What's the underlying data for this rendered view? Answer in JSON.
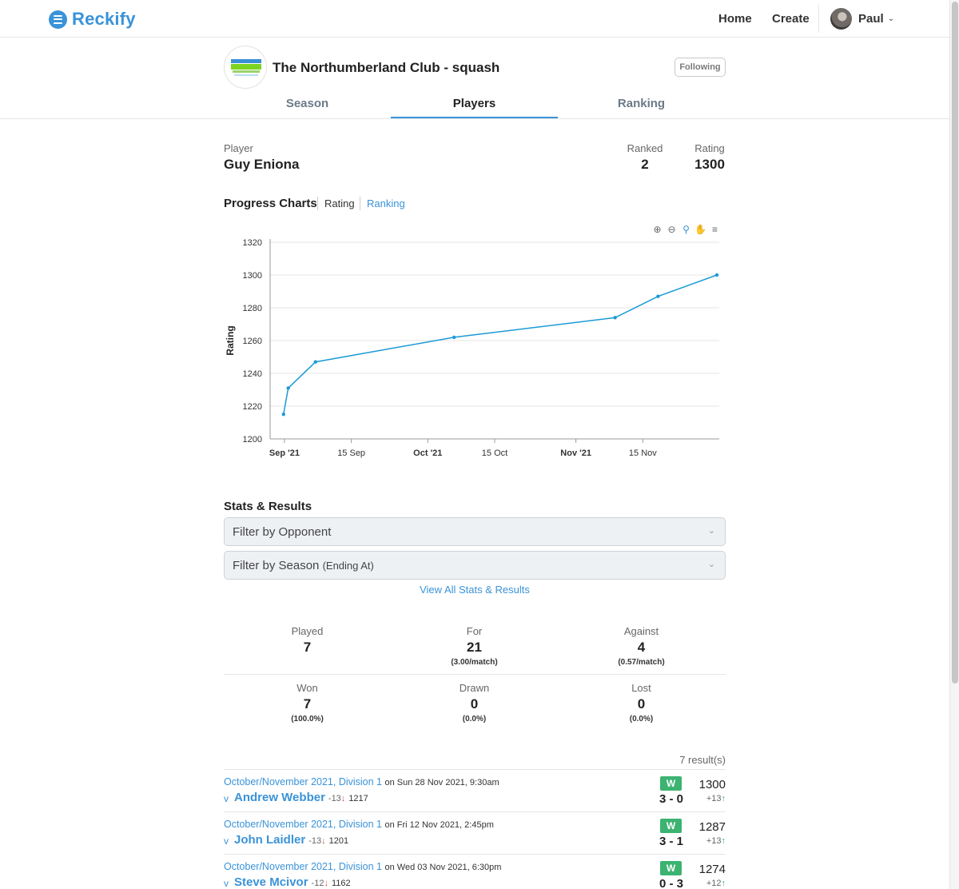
{
  "nav": {
    "brand": "Reckify",
    "home": "Home",
    "create": "Create",
    "user": "Paul"
  },
  "club": {
    "name": "The Northumberland Club - squash",
    "follow_label": "Following"
  },
  "tabs": [
    "Season",
    "Players",
    "Ranking"
  ],
  "player": {
    "label": "Player",
    "name": "Guy Eniona",
    "ranked_label": "Ranked",
    "ranked": "2",
    "rating_label": "Rating",
    "rating": "1300"
  },
  "progress": {
    "title": "Progress Charts",
    "rating_link": "Rating",
    "ranking_link": "Ranking"
  },
  "chart_data": {
    "type": "line",
    "title": "",
    "xlabel": "",
    "ylabel": "Rating",
    "ylim": [
      1200,
      1320
    ],
    "yticks": [
      1200,
      1220,
      1240,
      1260,
      1280,
      1300,
      1320
    ],
    "xlim_days": [
      -3,
      91
    ],
    "x_day0": "2021-09-01",
    "xticks": [
      {
        "day": 0,
        "label": "Sep '21",
        "bold": true
      },
      {
        "day": 14,
        "label": "15 Sep",
        "bold": false
      },
      {
        "day": 30,
        "label": "Oct '21",
        "bold": true
      },
      {
        "day": 44,
        "label": "15 Oct",
        "bold": false
      },
      {
        "day": 61,
        "label": "Nov '21",
        "bold": true
      },
      {
        "day": 75,
        "label": "15 Nov",
        "bold": false
      }
    ],
    "series": [
      {
        "name": "Rating",
        "x": [
          -0.2,
          0.8,
          6.5,
          35.5,
          69.2,
          78.2,
          90.5
        ],
        "values": [
          1215,
          1231,
          1247,
          1262,
          1274,
          1287,
          1300
        ]
      }
    ],
    "accent": "#1a9ad6"
  },
  "stats": {
    "title": "Stats & Results",
    "filter_opponent": "Filter by Opponent",
    "filter_season": "Filter by Season",
    "filter_season_sub": "(Ending At)",
    "view_all": "View All Stats & Results",
    "played_label": "Played",
    "played": "7",
    "for_label": "For",
    "for": "21",
    "for_sub": "(3.00/match)",
    "against_label": "Against",
    "against": "4",
    "against_sub": "(0.57/match)",
    "won_label": "Won",
    "won": "7",
    "won_sub": "(100.0%)",
    "drawn_label": "Drawn",
    "drawn": "0",
    "drawn_sub": "(0.0%)",
    "lost_label": "Lost",
    "lost": "0",
    "lost_sub": "(0.0%)"
  },
  "results": {
    "count": "7 result(s)",
    "items": [
      {
        "season": "October/November 2021, Division 1",
        "date": "on Sun 28 Nov 2021, 9:30am",
        "v": "v",
        "opponent": "Andrew Webber",
        "opp_delta": "-13",
        "opp_rating": "1217",
        "outcome": "W",
        "score": "3 - 0",
        "rating": "1300",
        "delta": "+13"
      },
      {
        "season": "October/November 2021, Division 1",
        "date": "on Fri 12 Nov 2021, 2:45pm",
        "v": "v",
        "opponent": "John Laidler",
        "opp_delta": "-13",
        "opp_rating": "1201",
        "outcome": "W",
        "score": "3 - 1",
        "rating": "1287",
        "delta": "+13"
      },
      {
        "season": "October/November 2021, Division 1",
        "date": "on Wed 03 Nov 2021, 6:30pm",
        "v": "v",
        "opponent": "Steve Mcivor",
        "opp_delta": "-12",
        "opp_rating": "1162",
        "outcome": "W",
        "score": "0 - 3",
        "rating": "1274",
        "delta": "+12"
      }
    ]
  },
  "colors": {
    "accent": "#3a93d8",
    "win": "#3cb371",
    "loss_arrow": "#d9534f"
  },
  "icons": [
    "zoom-in-icon",
    "zoom-out-icon",
    "magnify-icon",
    "pan-hand-icon",
    "menu-icon",
    "chevron-down-icon",
    "arrow-down-icon",
    "arrow-up-icon"
  ]
}
